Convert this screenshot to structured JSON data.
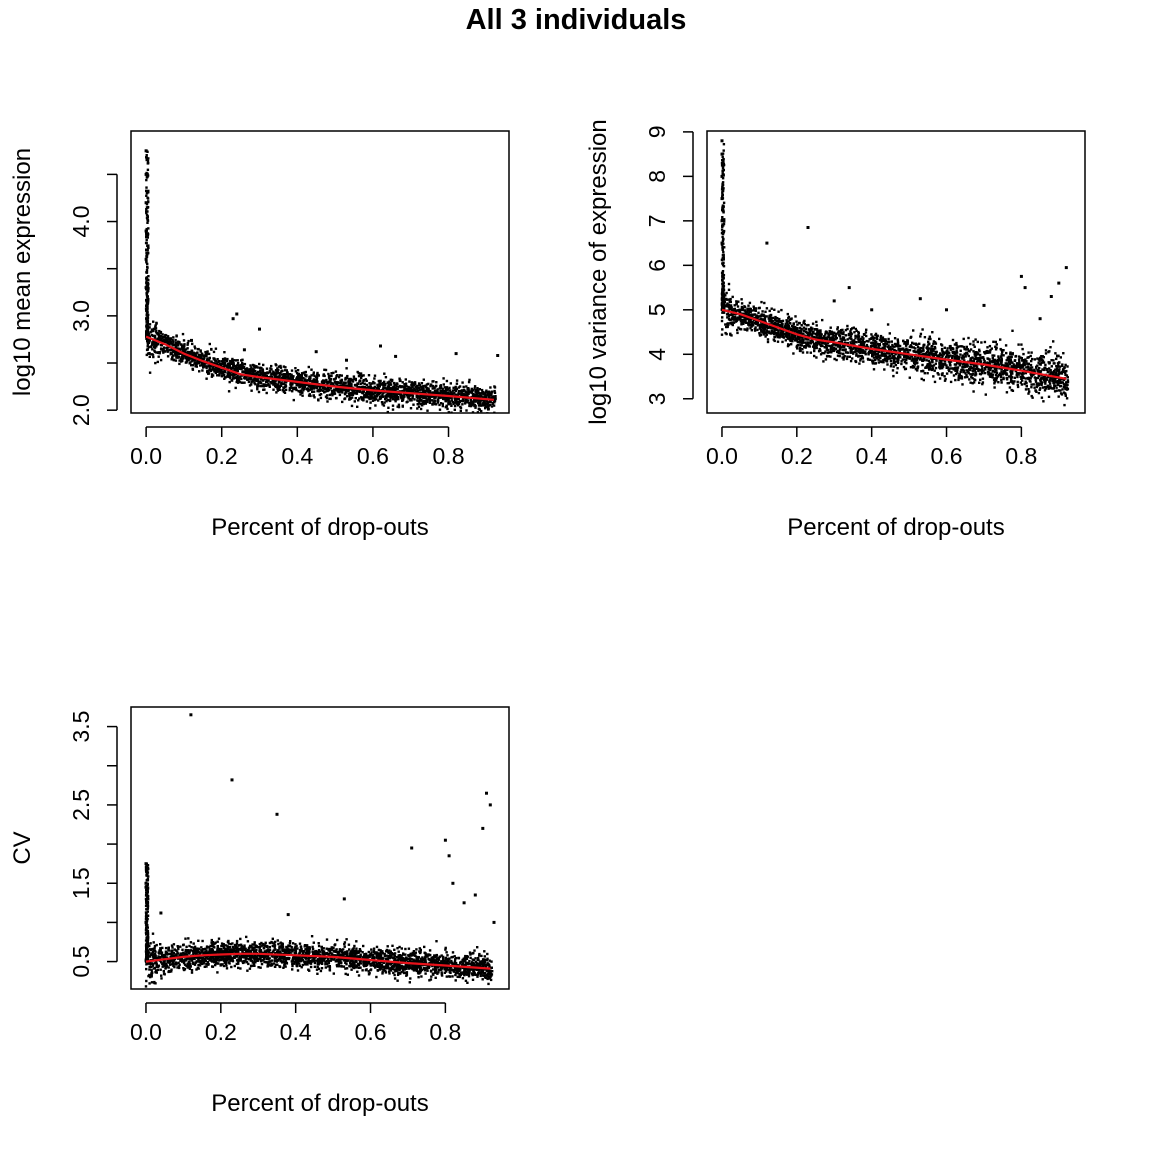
{
  "figure": {
    "title": "All 3 individuals"
  },
  "chart_data": [
    {
      "type": "scatter",
      "xlabel": "Percent of drop-outs",
      "ylabel": "log10 mean expression",
      "xlim": [
        -0.04,
        0.96
      ],
      "ylim": [
        1.97,
        4.96
      ],
      "x_ticks": [
        0.0,
        0.2,
        0.4,
        0.6,
        0.8
      ],
      "x_tick_labels": [
        "0.0",
        "0.2",
        "0.4",
        "0.6",
        "0.8"
      ],
      "y_ticks": [
        2.0,
        2.5,
        3.0,
        3.5,
        4.0,
        4.5
      ],
      "y_tick_labels": [
        "2.0",
        "",
        "3.0",
        "",
        "4.0",
        ""
      ],
      "grid": false,
      "point_color": "#000000",
      "trend": {
        "color": "#e8121a",
        "x": [
          0.0,
          0.05,
          0.1,
          0.15,
          0.2,
          0.25,
          0.3,
          0.4,
          0.5,
          0.6,
          0.7,
          0.8,
          0.92
        ],
        "y": [
          2.78,
          2.7,
          2.6,
          2.52,
          2.45,
          2.38,
          2.35,
          2.3,
          2.25,
          2.21,
          2.18,
          2.15,
          2.11
        ]
      },
      "outliers": {
        "x": [
          0.0,
          0.0,
          0.0,
          0.0,
          0.0,
          0.0,
          0.23,
          0.24,
          0.3,
          0.45,
          0.53,
          0.62,
          0.66,
          0.82,
          0.93,
          0.12,
          0.16,
          0.26
        ],
        "y": [
          4.75,
          4.5,
          4.2,
          3.9,
          3.6,
          3.3,
          2.97,
          3.02,
          2.86,
          2.62,
          2.53,
          2.68,
          2.57,
          2.6,
          2.58,
          2.74,
          2.6,
          2.64
        ]
      }
    },
    {
      "type": "scatter",
      "xlabel": "Percent of drop-outs",
      "ylabel": "log10 variance of expression",
      "xlim": [
        -0.04,
        0.97
      ],
      "ylim": [
        2.68,
        9.02
      ],
      "x_ticks": [
        0.0,
        0.2,
        0.4,
        0.6,
        0.8
      ],
      "x_tick_labels": [
        "0.0",
        "0.2",
        "0.4",
        "0.6",
        "0.8"
      ],
      "y_ticks": [
        3,
        4,
        5,
        6,
        7,
        8,
        9
      ],
      "y_tick_labels": [
        "3",
        "4",
        "5",
        "6",
        "7",
        "8",
        "9"
      ],
      "grid": false,
      "point_color": "#000000",
      "trend": {
        "color": "#e8121a",
        "x": [
          0.0,
          0.05,
          0.1,
          0.15,
          0.2,
          0.25,
          0.3,
          0.4,
          0.5,
          0.6,
          0.7,
          0.8,
          0.92
        ],
        "y": [
          5.0,
          4.9,
          4.75,
          4.6,
          4.45,
          4.33,
          4.27,
          4.12,
          4.0,
          3.88,
          3.77,
          3.63,
          3.45
        ]
      },
      "outliers": {
        "x": [
          0.0,
          0.0,
          0.0,
          0.0,
          0.0,
          0.0,
          0.12,
          0.23,
          0.3,
          0.34,
          0.4,
          0.53,
          0.6,
          0.7,
          0.8,
          0.81,
          0.88,
          0.92,
          0.9,
          0.85
        ],
        "y": [
          8.8,
          8.5,
          8.0,
          7.5,
          7.0,
          6.5,
          6.5,
          6.85,
          5.2,
          5.5,
          5.0,
          5.25,
          5.0,
          5.1,
          5.75,
          5.5,
          5.3,
          5.95,
          5.6,
          4.8
        ]
      }
    },
    {
      "type": "scatter",
      "xlabel": "Percent of drop-outs",
      "ylabel": "CV",
      "xlim": [
        -0.04,
        0.97
      ],
      "ylim": [
        0.15,
        3.75
      ],
      "x_ticks": [
        0.0,
        0.2,
        0.4,
        0.6,
        0.8
      ],
      "x_tick_labels": [
        "0.0",
        "0.2",
        "0.4",
        "0.6",
        "0.8"
      ],
      "y_ticks": [
        0.5,
        1.0,
        1.5,
        2.0,
        2.5,
        3.0,
        3.5
      ],
      "y_tick_labels": [
        "0.5",
        "",
        "1.5",
        "",
        "2.5",
        "",
        "3.5"
      ],
      "grid": false,
      "point_color": "#000000",
      "trend": {
        "color": "#e8121a",
        "x": [
          0.0,
          0.05,
          0.1,
          0.15,
          0.2,
          0.25,
          0.3,
          0.4,
          0.5,
          0.6,
          0.7,
          0.8,
          0.92
        ],
        "y": [
          0.5,
          0.53,
          0.56,
          0.58,
          0.59,
          0.6,
          0.6,
          0.58,
          0.56,
          0.52,
          0.48,
          0.45,
          0.41
        ]
      },
      "outliers": {
        "x": [
          0.0,
          0.0,
          0.0,
          0.0,
          0.04,
          0.12,
          0.23,
          0.35,
          0.38,
          0.53,
          0.71,
          0.8,
          0.81,
          0.82,
          0.9,
          0.91,
          0.92,
          0.93,
          0.88,
          0.85
        ],
        "y": [
          1.75,
          1.5,
          1.45,
          1.0,
          1.12,
          3.65,
          2.82,
          2.38,
          1.1,
          1.3,
          1.95,
          2.05,
          1.85,
          1.5,
          2.2,
          2.65,
          2.5,
          1.0,
          1.35,
          1.25
        ]
      }
    }
  ]
}
